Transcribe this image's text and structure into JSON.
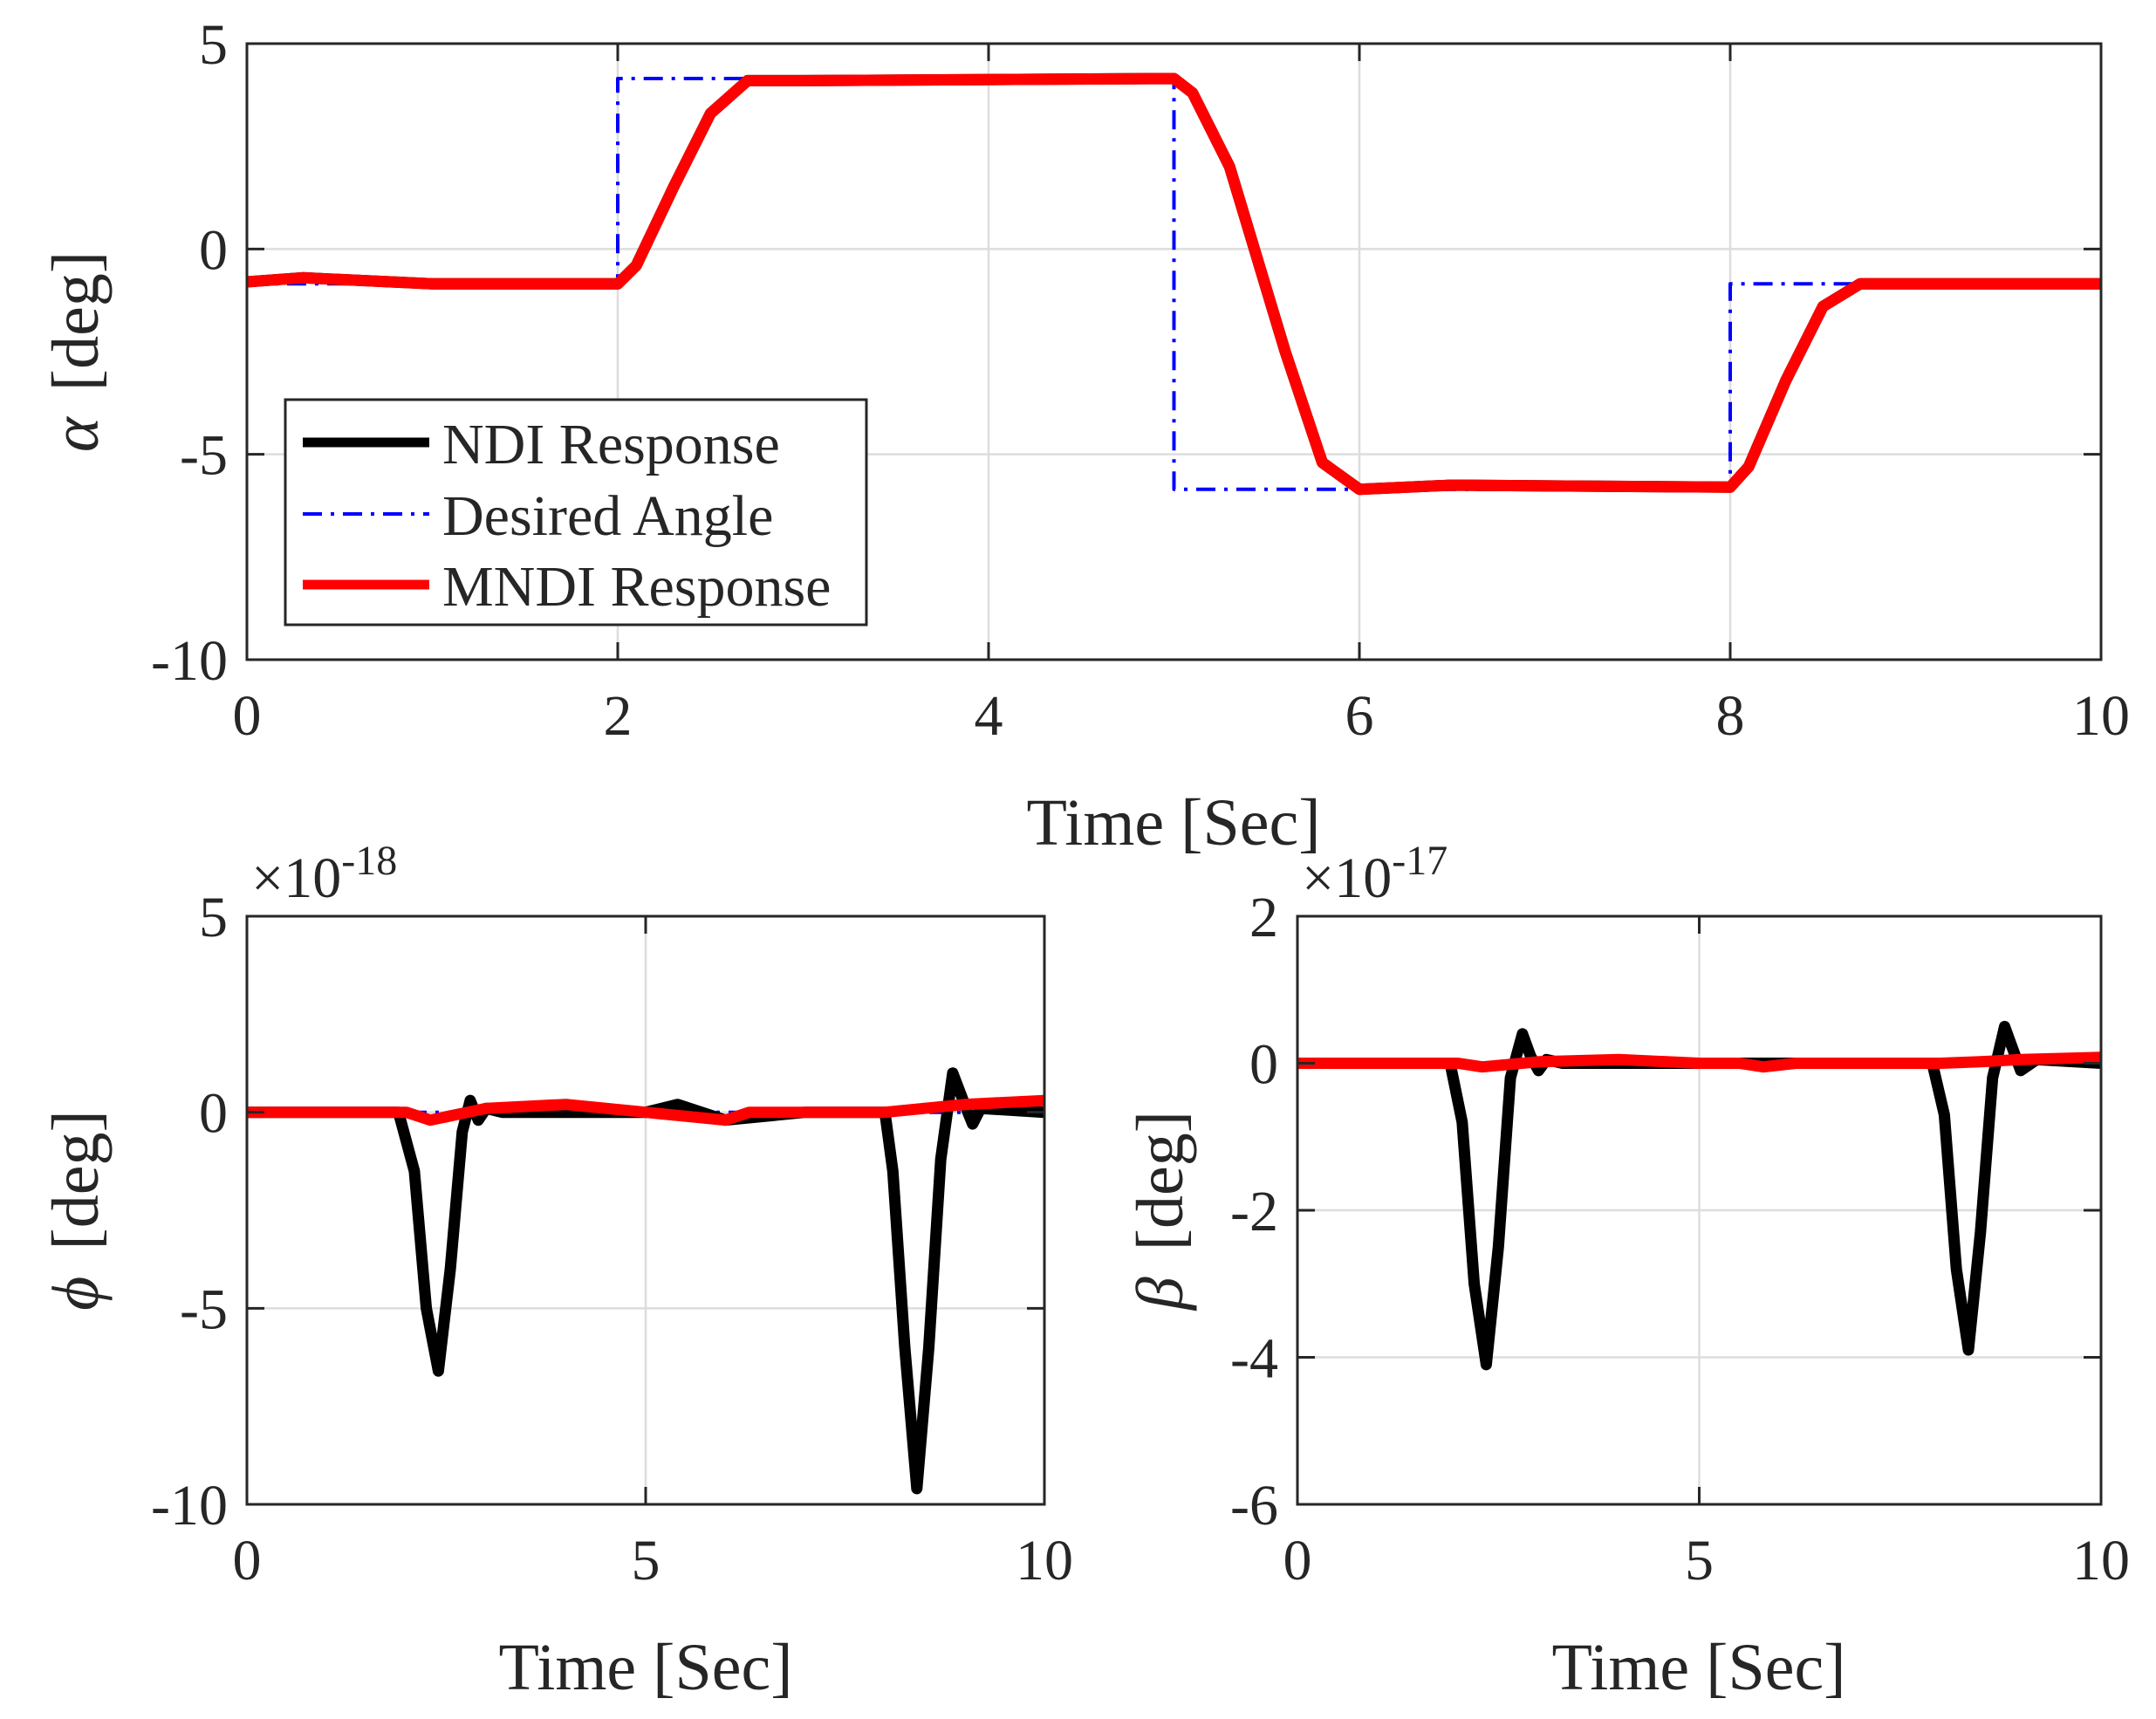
{
  "colors": {
    "ndi": "#000000",
    "desired": "#0000ff",
    "mndi": "#ff0000",
    "grid": "#dddddd",
    "axis": "#262626"
  },
  "chart_data": [
    {
      "id": "alpha",
      "type": "line",
      "xlabel": "Time  [Sec]",
      "ylabel_symbol": "α",
      "ylabel_unit": "[deg]",
      "xlim": [
        0,
        10
      ],
      "ylim": [
        -10,
        5
      ],
      "xticks": [
        0,
        2,
        4,
        6,
        8,
        10
      ],
      "xtick_labels": [
        "0",
        "2",
        "4",
        "6",
        "8",
        "10"
      ],
      "yticks": [
        -10,
        -5,
        0,
        5
      ],
      "ytick_labels": [
        "-10",
        "-5",
        "0",
        "5"
      ],
      "grid": true,
      "exponent": null,
      "legend": {
        "position": "lower-left",
        "entries": [
          "NDI Response",
          "Desired Angle",
          "MNDI Response"
        ]
      },
      "series": [
        {
          "name": "NDI Response",
          "style": "solid",
          "color": "#000000",
          "x": [
            0,
            0.3,
            1,
            2,
            2.1,
            2.3,
            2.5,
            2.7,
            3,
            5,
            5.1,
            5.3,
            5.6,
            5.8,
            6,
            6.5,
            8,
            8.1,
            8.3,
            8.5,
            8.7,
            10
          ],
          "y": [
            -0.8,
            -0.7,
            -0.85,
            -0.85,
            -0.4,
            1.5,
            3.3,
            4.1,
            4.1,
            4.15,
            3.8,
            2.0,
            -2.5,
            -5.2,
            -5.85,
            -5.75,
            -5.8,
            -5.3,
            -3.2,
            -1.4,
            -0.85,
            -0.85
          ]
        },
        {
          "name": "Desired Angle",
          "style": "dashdot",
          "color": "#0000ff",
          "x": [
            0,
            2,
            2,
            5,
            5,
            8,
            8,
            10
          ],
          "y": [
            -0.85,
            -0.85,
            4.15,
            4.15,
            -5.85,
            -5.85,
            -0.85,
            -0.85
          ]
        },
        {
          "name": "MNDI Response",
          "style": "solid",
          "color": "#ff0000",
          "x": [
            0,
            0.3,
            1,
            2,
            2.1,
            2.3,
            2.5,
            2.7,
            3,
            5,
            5.1,
            5.3,
            5.6,
            5.8,
            6,
            6.5,
            8,
            8.1,
            8.3,
            8.5,
            8.7,
            10
          ],
          "y": [
            -0.8,
            -0.7,
            -0.85,
            -0.85,
            -0.4,
            1.5,
            3.3,
            4.1,
            4.1,
            4.15,
            3.8,
            2.0,
            -2.5,
            -5.2,
            -5.85,
            -5.75,
            -5.8,
            -5.3,
            -3.2,
            -1.4,
            -0.85,
            -0.85
          ]
        }
      ]
    },
    {
      "id": "phi",
      "type": "line",
      "xlabel": "Time  [Sec]",
      "ylabel_symbol": "ϕ",
      "ylabel_unit": "[deg]",
      "xlim": [
        0,
        10
      ],
      "ylim": [
        -10,
        5
      ],
      "xticks": [
        0,
        5,
        10
      ],
      "xtick_labels": [
        "0",
        "5",
        "10"
      ],
      "yticks": [
        -10,
        -5,
        0,
        5
      ],
      "ytick_labels": [
        "-10",
        "-5",
        "0",
        "5"
      ],
      "grid": true,
      "exponent": {
        "base": "×10",
        "power": "-18"
      },
      "legend": null,
      "series": [
        {
          "name": "NDI Response",
          "style": "solid",
          "color": "#000000",
          "x": [
            0,
            1,
            1.9,
            2.1,
            2.25,
            2.4,
            2.55,
            2.7,
            2.8,
            2.9,
            3.0,
            3.2,
            4,
            5,
            5.4,
            6,
            7,
            8,
            8.1,
            8.25,
            8.4,
            8.55,
            8.7,
            8.85,
            9.0,
            9.1,
            9.2,
            10
          ],
          "y": [
            0,
            0,
            0,
            -1.5,
            -5,
            -6.6,
            -4,
            -0.5,
            0.3,
            -0.2,
            0.1,
            0,
            0,
            0,
            0.2,
            -0.2,
            0,
            0,
            -1.5,
            -6,
            -9.6,
            -6,
            -1.2,
            1.0,
            0.2,
            -0.3,
            0.1,
            0
          ]
        },
        {
          "name": "Desired Angle",
          "style": "dashdot",
          "color": "#0000ff",
          "x": [
            0,
            10
          ],
          "y": [
            0,
            0
          ]
        },
        {
          "name": "MNDI Response",
          "style": "solid",
          "color": "#ff0000",
          "x": [
            0,
            2,
            2.3,
            3,
            4,
            4.5,
            5,
            5.5,
            6,
            6.3,
            7,
            8,
            8.5,
            9,
            10
          ],
          "y": [
            0,
            0,
            -0.2,
            0.1,
            0.2,
            0.1,
            0,
            -0.1,
            -0.2,
            0,
            0,
            0,
            0.1,
            0.2,
            0.3
          ]
        }
      ]
    },
    {
      "id": "beta",
      "type": "line",
      "xlabel": "Time  [Sec]",
      "ylabel_symbol": "β",
      "ylabel_unit": "[deg]",
      "xlim": [
        0,
        10
      ],
      "ylim": [
        -6,
        2
      ],
      "xticks": [
        0,
        5,
        10
      ],
      "xtick_labels": [
        "0",
        "5",
        "10"
      ],
      "yticks": [
        -6,
        -4,
        -2,
        0,
        2
      ],
      "ytick_labels": [
        "-6",
        "-4",
        "-2",
        "0",
        "2"
      ],
      "grid": true,
      "exponent": {
        "base": "×10",
        "power": "-17"
      },
      "legend": null,
      "series": [
        {
          "name": "NDI Response",
          "style": "solid",
          "color": "#000000",
          "x": [
            0,
            1.9,
            2.05,
            2.2,
            2.35,
            2.5,
            2.65,
            2.8,
            2.9,
            3.0,
            3.1,
            3.3,
            5,
            7,
            7.9,
            8.05,
            8.2,
            8.35,
            8.5,
            8.65,
            8.8,
            8.9,
            9.0,
            9.2,
            10
          ],
          "y": [
            0,
            0,
            -0.8,
            -3.0,
            -4.1,
            -2.5,
            -0.2,
            0.4,
            0.1,
            -0.1,
            0.05,
            0,
            0,
            0,
            0,
            -0.7,
            -2.8,
            -3.9,
            -2.3,
            -0.2,
            0.5,
            0.2,
            -0.1,
            0.05,
            0
          ]
        },
        {
          "name": "Desired Angle",
          "style": "dashdot",
          "color": "#0000ff",
          "x": [
            0,
            10
          ],
          "y": [
            0,
            0
          ]
        },
        {
          "name": "MNDI Response",
          "style": "solid",
          "color": "#ff0000",
          "x": [
            0,
            2,
            2.3,
            3,
            4,
            5,
            5.5,
            5.8,
            6.2,
            7,
            8,
            8.5,
            9,
            10
          ],
          "y": [
            0,
            0,
            -0.05,
            0.02,
            0.05,
            0,
            0,
            -0.05,
            0,
            0,
            0,
            0.02,
            0.05,
            0.08
          ]
        }
      ]
    }
  ]
}
